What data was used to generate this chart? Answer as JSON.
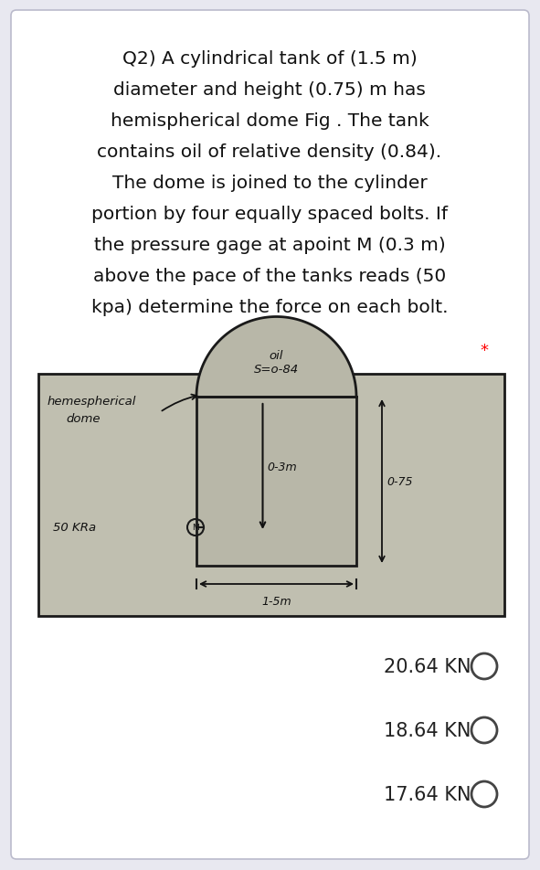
{
  "title_lines": [
    "Q2) A cylindrical tank of (1.5 m)",
    "diameter and height (0.75) m has",
    "hemispherical dome Fig . The tank",
    "contains oil of relative density (0.84).",
    "The dome is joined to the cylinder",
    "portion by four equally spaced bolts. If",
    "the pressure gage at apoint M (0.3 m)",
    "above the pace of the tanks reads (50",
    "kpa) determine the force on each bolt."
  ],
  "star_text": "*",
  "bg_color": "#e8e8f0",
  "card_color": "#ffffff",
  "diagram_bg": "#c0bfb0",
  "tank_fill": "#b8b7a8",
  "dome_fill": "#b8b7a8",
  "line_color": "#1a1a1a",
  "answers": [
    "20.64 KN",
    "18.64 KN",
    "17.64 KN"
  ],
  "label_heme": "hemespherical",
  "label_dome": "dome",
  "label_oil": "oil",
  "label_s084": "S=o-84",
  "label_50kpa": "50 KRa",
  "label_03m": "0-3m",
  "label_15m": "1-5m",
  "label_075": "0-75"
}
